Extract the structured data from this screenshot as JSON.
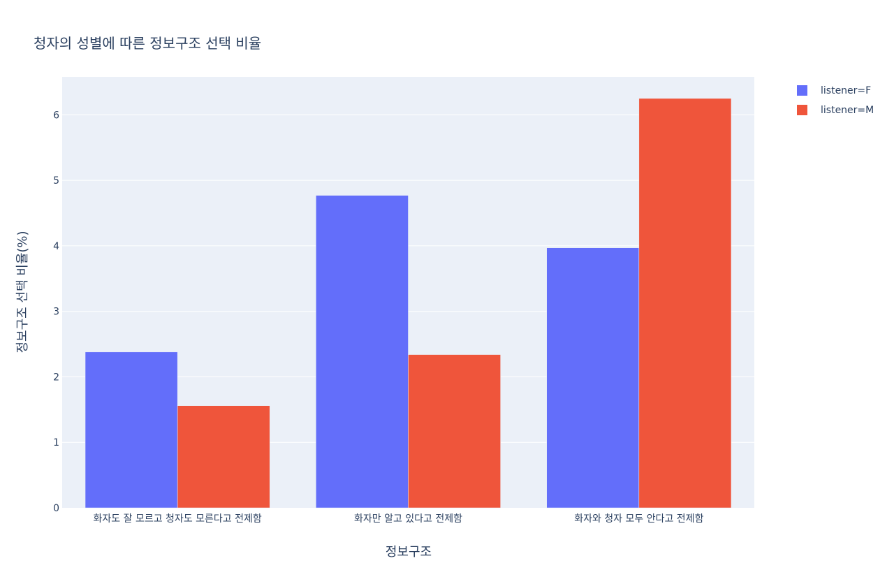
{
  "chart_data": {
    "type": "bar",
    "title": "청자의 성별에 따른 정보구조 선택 비율",
    "xlabel": "정보구조",
    "ylabel": "정보구조 선택 비율(%)",
    "categories": [
      "화자도 잘 모르고 청자도 모른다고 전제함",
      "화자만 알고 있다고 전제함",
      "화자와 청자 모두 안다고 전제함"
    ],
    "series": [
      {
        "name": "listener=F",
        "color": "#636efa",
        "values": [
          2.38,
          4.77,
          3.97
        ]
      },
      {
        "name": "listener=M",
        "color": "#ef553b",
        "values": [
          1.56,
          2.34,
          6.25
        ]
      }
    ],
    "ylim": [
      0,
      6.58
    ],
    "yticks": [
      "0",
      "1",
      "2",
      "3",
      "4",
      "5",
      "6"
    ],
    "grid": true,
    "legend_position": "top-right",
    "plot_background": "#ebf0f8",
    "barmode": "group"
  }
}
